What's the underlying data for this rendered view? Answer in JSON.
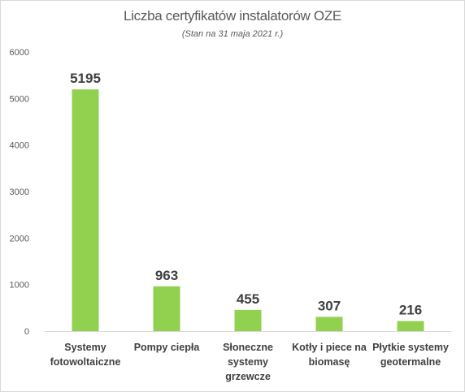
{
  "chart_data": {
    "type": "bar",
    "title": "Liczba certyfikatów  instalatorów OZE",
    "subtitle": "(Stan na 31 maja 2021 r.)",
    "categories": [
      [
        "Systemy",
        "fotowoltaiczne"
      ],
      [
        "Pompy ciepła"
      ],
      [
        "Słoneczne",
        "systemy",
        "grzewcze"
      ],
      [
        "Kotły i piece na",
        "biomasę"
      ],
      [
        "Płytkie systemy",
        "geotermalne"
      ]
    ],
    "values": [
      5195,
      963,
      455,
      307,
      216
    ],
    "data_labels": [
      "5195",
      "963",
      "455",
      "307",
      "216"
    ],
    "ylim": [
      0,
      6000
    ],
    "yticks": [
      0,
      1000,
      2000,
      3000,
      4000,
      5000,
      6000
    ],
    "xlabel": "",
    "ylabel": "",
    "grid": false,
    "legend": "none",
    "bar_color": "#92d050",
    "axis_color": "#d9d9d9"
  }
}
